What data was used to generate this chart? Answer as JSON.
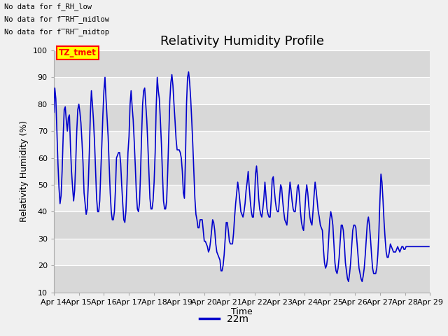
{
  "title": "Relativity Humidity Profile",
  "ylabel": "Relativity Humidity (%)",
  "xlabel": "Time",
  "ylim": [
    10,
    100
  ],
  "xlim_days": [
    0,
    15
  ],
  "x_tick_labels": [
    "Apr 14",
    "Apr 15",
    "Apr 16",
    "Apr 17",
    "Apr 18",
    "Apr 19",
    "Apr 20",
    "Apr 21",
    "Apr 22",
    "Apr 23",
    "Apr 24",
    "Apr 25",
    "Apr 26",
    "Apr 27",
    "Apr 28",
    "Apr 29"
  ],
  "yticks": [
    10,
    20,
    30,
    40,
    50,
    60,
    70,
    80,
    90,
    100
  ],
  "line_color": "#0000cc",
  "legend_label": "22m",
  "no_data_texts": [
    "No data for f_RH_low",
    "No data for f̅RH̅_midlow",
    "No data for f̅RH̅_midtop"
  ],
  "tz_tmet_label": "TZ_tmet",
  "fig_bg_color": "#f0f0f0",
  "plot_bg_color": "#e8e8e8",
  "band_dark_color": "#d8d8d8",
  "band_light_color": "#e8e8e8",
  "grid_color": "#ffffff",
  "title_fontsize": 13,
  "axis_fontsize": 9,
  "tick_fontsize": 8,
  "data_x": [
    0.0,
    0.042,
    0.083,
    0.125,
    0.167,
    0.208,
    0.25,
    0.292,
    0.333,
    0.375,
    0.417,
    0.458,
    0.5,
    0.542,
    0.583,
    0.625,
    0.667,
    0.708,
    0.75,
    0.792,
    0.833,
    0.875,
    0.917,
    0.958,
    1.0,
    1.042,
    1.083,
    1.125,
    1.167,
    1.208,
    1.25,
    1.292,
    1.333,
    1.375,
    1.417,
    1.458,
    1.5,
    1.542,
    1.583,
    1.625,
    1.667,
    1.708,
    1.75,
    1.792,
    1.833,
    1.875,
    1.917,
    1.958,
    2.0,
    2.042,
    2.083,
    2.125,
    2.167,
    2.208,
    2.25,
    2.292,
    2.333,
    2.375,
    2.417,
    2.458,
    2.5,
    2.542,
    2.583,
    2.625,
    2.667,
    2.708,
    2.75,
    2.792,
    2.833,
    2.875,
    2.917,
    2.958,
    3.0,
    3.042,
    3.083,
    3.125,
    3.167,
    3.208,
    3.25,
    3.292,
    3.333,
    3.375,
    3.417,
    3.458,
    3.5,
    3.542,
    3.583,
    3.625,
    3.667,
    3.708,
    3.75,
    3.792,
    3.833,
    3.875,
    3.917,
    3.958,
    4.0,
    4.042,
    4.083,
    4.125,
    4.167,
    4.208,
    4.25,
    4.292,
    4.333,
    4.375,
    4.417,
    4.458,
    4.5,
    4.542,
    4.583,
    4.625,
    4.667,
    4.708,
    4.75,
    4.792,
    4.833,
    4.875,
    4.917,
    4.958,
    5.0,
    5.042,
    5.083,
    5.125,
    5.167,
    5.208,
    5.25,
    5.292,
    5.333,
    5.375,
    5.417,
    5.458,
    5.5,
    5.542,
    5.583,
    5.625,
    5.667,
    5.708,
    5.75,
    5.792,
    5.833,
    5.875,
    5.917,
    5.958,
    6.0,
    6.042,
    6.083,
    6.125,
    6.167,
    6.208,
    6.25,
    6.292,
    6.333,
    6.375,
    6.417,
    6.458,
    6.5,
    6.542,
    6.583,
    6.625,
    6.667,
    6.708,
    6.75,
    6.792,
    6.833,
    6.875,
    6.917,
    6.958,
    7.0,
    7.042,
    7.083,
    7.125,
    7.167,
    7.208,
    7.25,
    7.292,
    7.333,
    7.375,
    7.417,
    7.458,
    7.5,
    7.542,
    7.583,
    7.625,
    7.667,
    7.708,
    7.75,
    7.792,
    7.833,
    7.875,
    7.917,
    7.958,
    8.0,
    8.042,
    8.083,
    8.125,
    8.167,
    8.208,
    8.25,
    8.292,
    8.333,
    8.375,
    8.417,
    8.458,
    8.5,
    8.542,
    8.583,
    8.625,
    8.667,
    8.708,
    8.75,
    8.792,
    8.833,
    8.875,
    8.917,
    8.958,
    9.0,
    9.042,
    9.083,
    9.125,
    9.167,
    9.208,
    9.25,
    9.292,
    9.333,
    9.375,
    9.417,
    9.458,
    9.5,
    9.542,
    9.583,
    9.625,
    9.667,
    9.708,
    9.75,
    9.792,
    9.833,
    9.875,
    9.917,
    9.958,
    10.0,
    10.042,
    10.083,
    10.125,
    10.167,
    10.208,
    10.25,
    10.292,
    10.333,
    10.375,
    10.417,
    10.458,
    10.5,
    10.542,
    10.583,
    10.625,
    10.667,
    10.708,
    10.75,
    10.792,
    10.833,
    10.875,
    10.917,
    10.958,
    11.0,
    11.042,
    11.083,
    11.125,
    11.167,
    11.208,
    11.25,
    11.292,
    11.333,
    11.375,
    11.417,
    11.458,
    11.5,
    11.542,
    11.583,
    11.625,
    11.667,
    11.708,
    11.75,
    11.792,
    11.833,
    11.875,
    11.917,
    11.958,
    12.0,
    12.042,
    12.083,
    12.125,
    12.167,
    12.208,
    12.25,
    12.292,
    12.333,
    12.375,
    12.417,
    12.458,
    12.5,
    12.542,
    12.583,
    12.625,
    12.667,
    12.708,
    12.75,
    12.792,
    12.833,
    12.875,
    12.917,
    12.958,
    13.0,
    13.042,
    13.083,
    13.125,
    13.167,
    13.208,
    13.25,
    13.292,
    13.333,
    13.375,
    13.417,
    13.458,
    13.5,
    13.542,
    13.583,
    13.625,
    13.667,
    13.708,
    13.75,
    13.792,
    13.833,
    13.875,
    13.917,
    13.958,
    14.0,
    14.042,
    14.083,
    14.125,
    14.167,
    14.208,
    14.25,
    14.292,
    14.333,
    14.375,
    14.417,
    14.458,
    14.5,
    14.542,
    14.583,
    14.625,
    14.667,
    14.708,
    14.75,
    14.792,
    14.833,
    14.875,
    14.917,
    14.958
  ],
  "data_y": [
    77,
    86,
    82,
    70,
    58,
    49,
    43,
    46,
    55,
    68,
    78,
    79,
    74,
    70,
    75,
    76,
    64,
    55,
    49,
    44,
    48,
    58,
    70,
    78,
    80,
    77,
    73,
    66,
    58,
    47,
    43,
    39,
    41,
    50,
    62,
    76,
    85,
    80,
    74,
    66,
    55,
    45,
    40,
    40,
    44,
    55,
    65,
    76,
    85,
    90,
    82,
    75,
    68,
    58,
    47,
    40,
    37,
    37,
    40,
    48,
    60,
    61,
    62,
    62,
    58,
    50,
    43,
    37,
    36,
    40,
    50,
    62,
    68,
    80,
    85,
    79,
    74,
    66,
    57,
    47,
    41,
    40,
    43,
    54,
    68,
    80,
    85,
    86,
    80,
    74,
    65,
    55,
    45,
    41,
    41,
    44,
    51,
    62,
    79,
    90,
    85,
    82,
    74,
    65,
    54,
    44,
    41,
    41,
    44,
    55,
    68,
    81,
    88,
    91,
    87,
    80,
    74,
    67,
    63,
    63,
    63,
    62,
    60,
    55,
    47,
    45,
    60,
    80,
    90,
    92,
    88,
    82,
    74,
    65,
    55,
    45,
    39,
    37,
    34,
    34,
    37,
    37,
    37,
    33,
    29,
    29,
    28,
    27,
    25,
    26,
    29,
    33,
    37,
    36,
    33,
    28,
    25,
    24,
    23,
    22,
    18,
    18,
    20,
    24,
    30,
    36,
    36,
    33,
    29,
    28,
    28,
    28,
    32,
    38,
    43,
    47,
    51,
    48,
    44,
    40,
    39,
    38,
    40,
    43,
    48,
    51,
    55,
    49,
    44,
    40,
    38,
    38,
    44,
    54,
    57,
    52,
    45,
    41,
    39,
    38,
    41,
    45,
    51,
    46,
    41,
    39,
    38,
    38,
    44,
    52,
    53,
    48,
    44,
    41,
    40,
    40,
    45,
    50,
    49,
    44,
    40,
    37,
    36,
    35,
    40,
    46,
    51,
    48,
    44,
    41,
    40,
    40,
    44,
    49,
    50,
    46,
    40,
    36,
    34,
    33,
    39,
    46,
    50,
    47,
    42,
    38,
    36,
    35,
    40,
    46,
    51,
    48,
    44,
    40,
    38,
    35,
    34,
    33,
    26,
    21,
    19,
    20,
    23,
    30,
    37,
    40,
    38,
    35,
    28,
    21,
    18,
    17,
    19,
    23,
    29,
    35,
    35,
    33,
    28,
    21,
    18,
    15,
    14,
    17,
    21,
    27,
    33,
    35,
    35,
    34,
    29,
    24,
    19,
    17,
    15,
    14,
    16,
    19,
    24,
    30,
    36,
    38,
    35,
    30,
    24,
    19,
    17,
    17,
    17,
    19,
    24,
    32,
    44,
    54,
    51,
    44,
    36,
    30,
    25,
    23,
    23,
    25,
    28,
    27,
    26,
    25,
    25,
    25,
    26,
    27,
    26,
    25,
    26,
    27,
    27,
    26,
    26,
    27,
    27,
    27,
    27,
    27,
    27,
    27,
    27,
    27,
    27,
    27,
    27,
    27,
    27,
    27,
    27,
    27,
    27,
    27,
    27,
    27,
    27,
    27
  ]
}
